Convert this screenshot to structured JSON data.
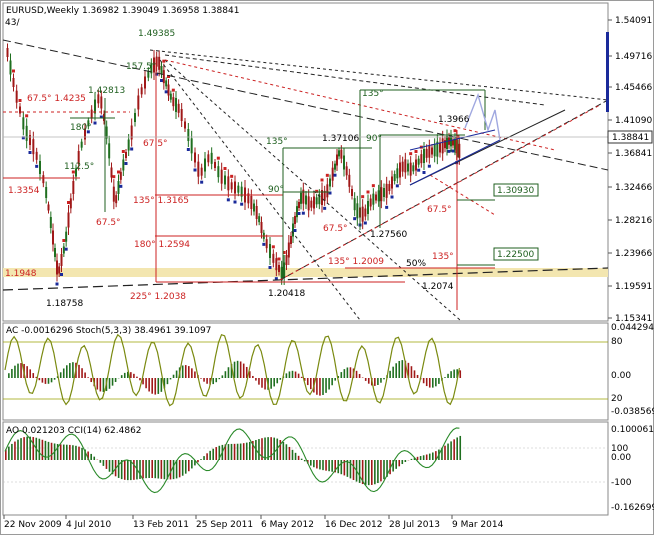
{
  "main_panel": {
    "title": "EURUSD,Weekly  1.36982 1.39049 1.36958 1.38841",
    "corner_label": "43/",
    "price_ticks": [
      "1.54091",
      "1.49716",
      "1.45466",
      "1.41090",
      "1.36841",
      "1.32466",
      "1.28216",
      "1.23966",
      "1.19591",
      "1.15341"
    ],
    "current_price": "1.38841",
    "boxed_levels": [
      "1.30930",
      "1.22500"
    ],
    "annotations": {
      "p14985": "1.49385",
      "p1575": "157.5°",
      "p14281": "1.42813",
      "p180a": "180°",
      "p675_14235": "67.5° 1.4235",
      "p675b": "67.5°",
      "p1125": "112.5°",
      "p13354": "1.3354",
      "p675c": "67.5°",
      "p135_13165": "135° 1.3165",
      "p180_12594": "180° 1.2594",
      "p11948": "1.1948",
      "p11875": "1.18758",
      "p225_12038": "225° 1.2038",
      "p12041": "1.20418",
      "p90a": "90°",
      "p135a": "135°",
      "p13710": "1.37106",
      "p90b": "90°",
      "p135b": "135°",
      "p13966": "1.3966",
      "p675d": "67.5°",
      "p12756": "1.27560",
      "p135_12009": "135° 1.2009",
      "p675e": "67.5°",
      "p50": "50%",
      "p135c": "135°",
      "p12074": "1.2074"
    }
  },
  "ac_panel": {
    "title": "AC -0.0016296  Stoch(5,3,3) 38.4961 39.1097",
    "ticks": [
      "0.044294",
      "80",
      "0.00",
      "20",
      "-0.038569"
    ]
  },
  "ao_panel": {
    "title": "AO 0.021203  CCI(14) 62.4862",
    "ticks": [
      "0.100061",
      "100",
      "0.00",
      "-100",
      "-0.162699"
    ]
  },
  "time_axis": [
    "22 Nov 2009",
    "4 Jul 2010",
    "13 Feb 2011",
    "25 Sep 2011",
    "6 May 2012",
    "16 Dec 2012",
    "28 Jul 2013",
    "9 Mar 2014"
  ],
  "colors": {
    "bull": "#1f6f1f",
    "bear": "#a01818",
    "blue_marker": "#1a2a9a",
    "annotation_red": "#cc2222",
    "annotation_green": "#1f5f1f",
    "band": "#f3e6b0",
    "stoch": "#7a8a10",
    "cci": "#2a8a2a"
  }
}
